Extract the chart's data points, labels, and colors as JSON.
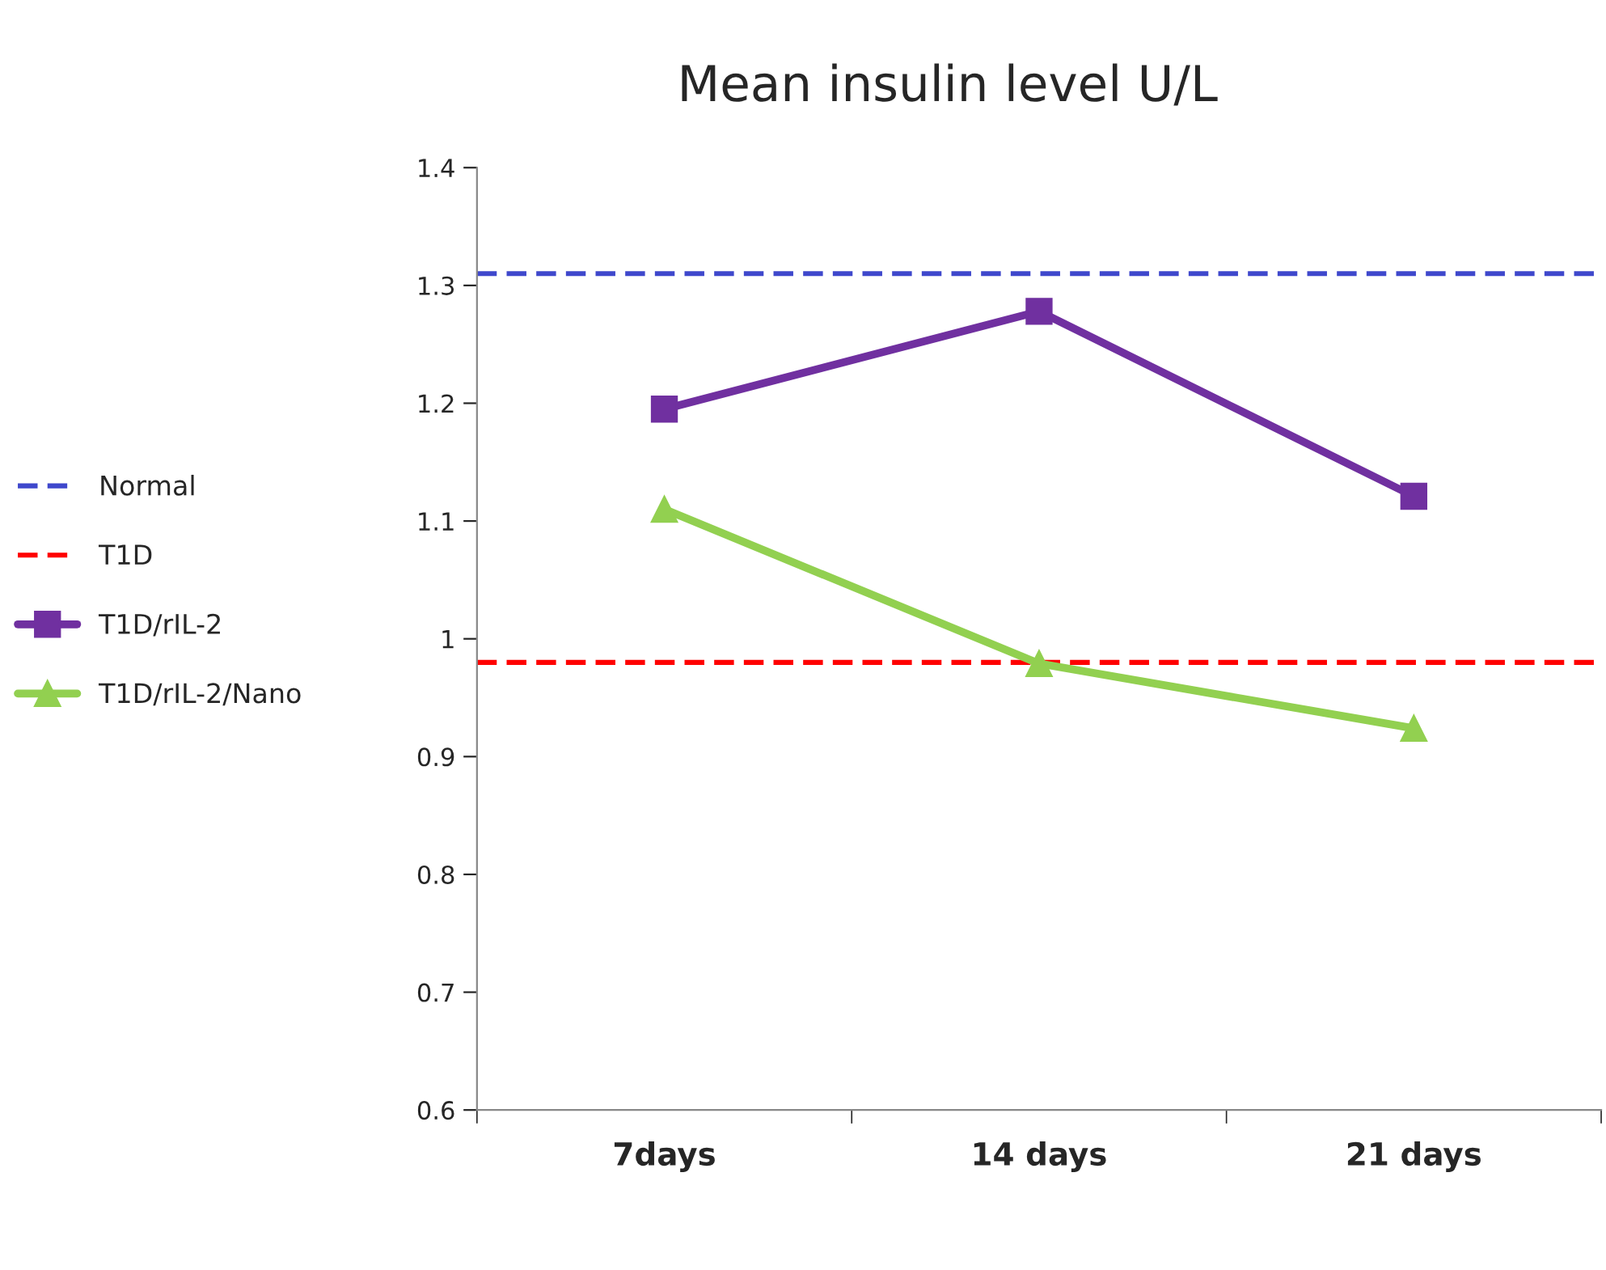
{
  "chart_data": {
    "type": "line",
    "title": "Mean insulin level U/L",
    "categories": [
      "7days",
      "14 days",
      "21 days"
    ],
    "series": [
      {
        "name": "T1D/rIL-2",
        "color": "#7030a0",
        "values": [
          1.195,
          1.278,
          1.121
        ],
        "marker": "square"
      },
      {
        "name": "T1D/rIL-2/Nano",
        "color": "#92d050",
        "values": [
          1.11,
          0.979,
          0.924
        ],
        "marker": "triangle"
      }
    ],
    "ref_lines": [
      {
        "axis": "y",
        "value": 1.31,
        "label": "Normal",
        "color": "#3f48cc",
        "line_style": "dashed"
      },
      {
        "axis": "y",
        "value": 0.98,
        "label": "T1D",
        "color": "#ff0000",
        "line_style": "dashed"
      }
    ],
    "ylim": [
      0.6,
      1.4
    ],
    "yticks": [
      0.6,
      0.7,
      0.8,
      0.9,
      1,
      1.1,
      1.2,
      1.3,
      1.4
    ],
    "grid": false,
    "legend": "left",
    "line_style": "solid"
  }
}
